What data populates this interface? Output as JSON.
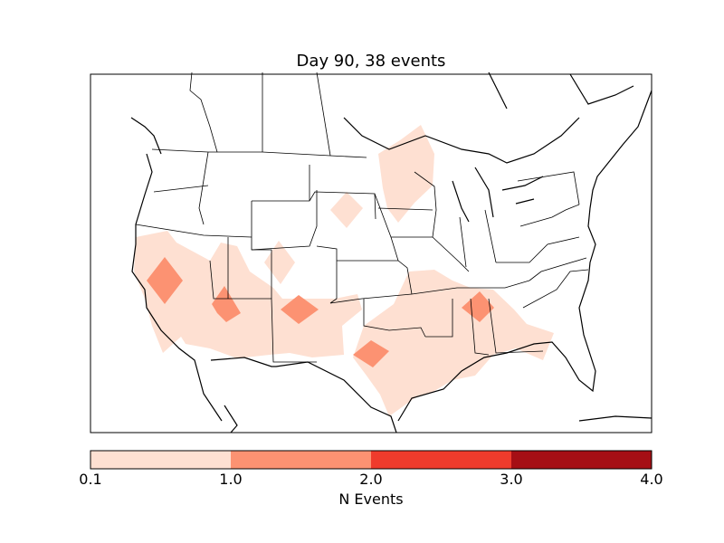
{
  "title": "Day 90, 38 events",
  "colorbar": {
    "label": "N Events",
    "ticks": [
      "0.1",
      "1.0",
      "2.0",
      "3.0",
      "4.0"
    ],
    "bins": [
      {
        "range": "0.1-1.0",
        "color": "#fee0d2"
      },
      {
        "range": "1.0-2.0",
        "color": "#fc9272"
      },
      {
        "range": "2.0-3.0",
        "color": "#ef3b2c"
      },
      {
        "range": "3.0-4.0",
        "color": "#a50f15"
      }
    ]
  },
  "map": {
    "region": "Continental United States",
    "features": [
      "coastlines",
      "country borders",
      "state borders",
      "lakes"
    ]
  },
  "colors": {
    "level1": "#fee0d2",
    "level2": "#fc9272",
    "outline": "#000000"
  }
}
